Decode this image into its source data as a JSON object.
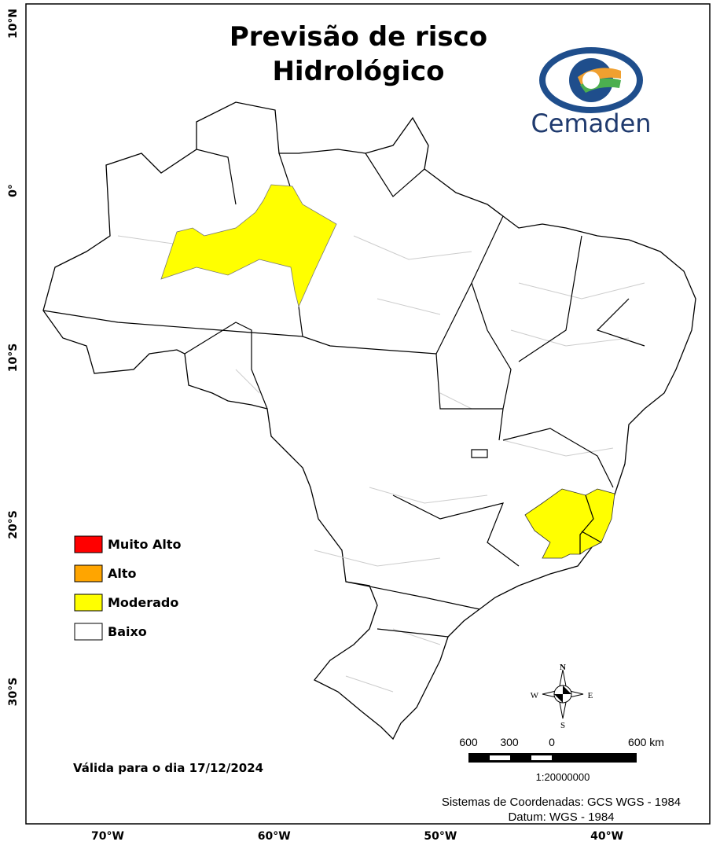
{
  "title": [
    "Previsão de risco",
    "Hidrológico"
  ],
  "logo": "Cemaden",
  "legend": [
    {
      "label": "Muito Alto",
      "color": "#ff0000"
    },
    {
      "label": "Alto",
      "color": "#ffa500"
    },
    {
      "label": "Moderado",
      "color": "#ffff00"
    },
    {
      "label": "Baixo",
      "color": "#ffffff"
    }
  ],
  "validity": "Válida para o dia 17/12/2024",
  "compass": {
    "n": "N",
    "e": "E",
    "s": "S",
    "w": "W"
  },
  "scale_bar": {
    "labels": [
      "600",
      "300",
      "0",
      "600 km"
    ],
    "ratio": "1:20000000"
  },
  "footer": [
    "Sistemas de Coordenadas: GCS WGS - 1984",
    "Datum: WGS - 1984"
  ],
  "axes": {
    "latitude": [
      "10°N",
      "0°",
      "10°S",
      "20°S",
      "30°S"
    ],
    "longitude": [
      "70°W",
      "60°W",
      "50°W",
      "40°W"
    ]
  }
}
